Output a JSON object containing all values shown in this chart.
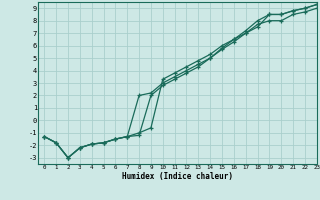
{
  "xlabel": "Humidex (Indice chaleur)",
  "xlim": [
    -0.5,
    23
  ],
  "ylim": [
    -3.5,
    9.5
  ],
  "xticks": [
    0,
    1,
    2,
    3,
    4,
    5,
    6,
    7,
    8,
    9,
    10,
    11,
    12,
    13,
    14,
    15,
    16,
    17,
    18,
    19,
    20,
    21,
    22,
    23
  ],
  "yticks": [
    -3,
    -2,
    -1,
    0,
    1,
    2,
    3,
    4,
    5,
    6,
    7,
    8,
    9
  ],
  "bg_color": "#cde8e5",
  "grid_color": "#aacfcc",
  "line_color": "#1a6b5a",
  "line1_x": [
    0,
    1,
    2,
    3,
    4,
    5,
    6,
    7,
    8,
    9,
    10,
    11,
    12,
    13,
    14,
    15,
    16,
    17,
    18,
    19,
    20,
    21,
    22,
    23
  ],
  "line1_y": [
    -1.3,
    -1.8,
    -3.0,
    -2.2,
    -1.9,
    -1.8,
    -1.5,
    -1.3,
    -1.0,
    -0.6,
    3.3,
    3.8,
    4.3,
    4.8,
    5.3,
    6.0,
    6.5,
    7.0,
    7.5,
    8.5,
    8.5,
    8.8,
    9.0,
    9.3
  ],
  "line2_x": [
    0,
    1,
    2,
    3,
    4,
    5,
    6,
    7,
    8,
    9,
    10,
    11,
    12,
    13,
    14,
    15,
    16,
    17,
    18,
    19,
    20,
    21,
    22,
    23
  ],
  "line2_y": [
    -1.3,
    -1.8,
    -3.0,
    -2.2,
    -1.9,
    -1.8,
    -1.5,
    -1.3,
    2.0,
    2.2,
    3.0,
    3.5,
    4.0,
    4.5,
    5.0,
    5.8,
    6.5,
    7.2,
    8.0,
    8.5,
    8.5,
    8.8,
    9.0,
    9.3
  ],
  "line3_x": [
    0,
    1,
    2,
    3,
    4,
    5,
    6,
    7,
    8,
    9,
    10,
    11,
    12,
    13,
    14,
    15,
    16,
    17,
    18,
    19,
    20,
    21,
    22,
    23
  ],
  "line3_y": [
    -1.3,
    -1.8,
    -3.0,
    -2.2,
    -1.9,
    -1.8,
    -1.5,
    -1.3,
    -1.2,
    2.0,
    2.8,
    3.3,
    3.8,
    4.3,
    5.0,
    5.7,
    6.3,
    7.0,
    7.7,
    8.0,
    8.0,
    8.5,
    8.7,
    9.0
  ]
}
